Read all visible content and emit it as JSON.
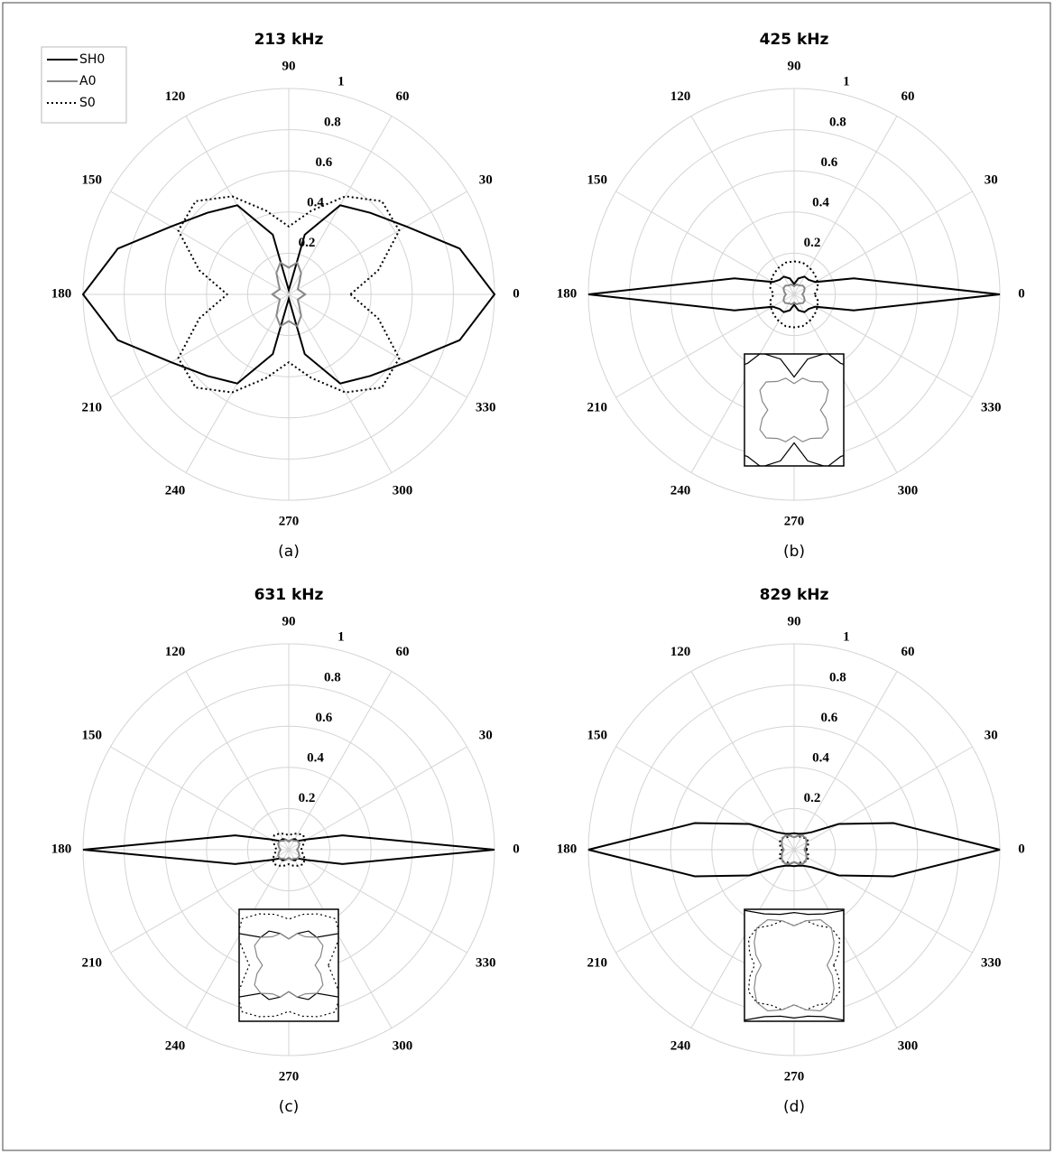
{
  "chart_data": [
    {
      "type": "polar",
      "title": "213 kHz",
      "caption": "(a)",
      "rlim": [
        0,
        1
      ],
      "rticks": [
        0.2,
        0.4,
        0.6,
        0.8,
        1
      ],
      "thetaticks": [
        0,
        30,
        60,
        90,
        120,
        150,
        180,
        210,
        240,
        270,
        300,
        330
      ],
      "grid": true,
      "legend": "upper left",
      "inset": false,
      "theta": [
        0,
        15,
        30,
        45,
        60,
        75,
        90,
        105,
        120,
        135,
        150,
        165,
        180,
        195,
        210,
        225,
        240,
        255,
        270,
        285,
        300,
        315,
        330,
        345
      ],
      "series": [
        {
          "name": "SH0",
          "color": "#000000",
          "dash": "solid",
          "values": [
            1.0,
            0.86,
            0.66,
            0.56,
            0.5,
            0.3,
            0.02,
            0.3,
            0.5,
            0.56,
            0.66,
            0.86,
            1.0,
            0.86,
            0.66,
            0.56,
            0.5,
            0.3,
            0.02,
            0.3,
            0.5,
            0.56,
            0.66,
            0.86
          ]
        },
        {
          "name": "A0",
          "color": "#888888",
          "dash": "solid",
          "values": [
            0.08,
            0.06,
            0.05,
            0.07,
            0.12,
            0.16,
            0.13,
            0.16,
            0.12,
            0.07,
            0.05,
            0.06,
            0.08,
            0.06,
            0.05,
            0.07,
            0.12,
            0.16,
            0.13,
            0.16,
            0.12,
            0.07,
            0.05,
            0.06
          ]
        },
        {
          "name": "S0",
          "color": "#000000",
          "dash": "dotted",
          "values": [
            0.3,
            0.45,
            0.62,
            0.64,
            0.55,
            0.42,
            0.33,
            0.42,
            0.55,
            0.64,
            0.62,
            0.45,
            0.3,
            0.45,
            0.62,
            0.64,
            0.55,
            0.42,
            0.33,
            0.42,
            0.55,
            0.64,
            0.62,
            0.45
          ]
        }
      ]
    },
    {
      "type": "polar",
      "title": "425 kHz",
      "caption": "(b)",
      "rlim": [
        0,
        1
      ],
      "rticks": [
        0.2,
        0.4,
        0.6,
        0.8,
        1
      ],
      "thetaticks": [
        0,
        30,
        60,
        90,
        120,
        150,
        180,
        210,
        240,
        270,
        300,
        330
      ],
      "grid": true,
      "inset": true,
      "theta": [
        0,
        15,
        30,
        45,
        60,
        75,
        90,
        105,
        120,
        135,
        150,
        165,
        180,
        195,
        210,
        225,
        240,
        255,
        270,
        285,
        300,
        315,
        330,
        345
      ],
      "series": [
        {
          "color": "#000000",
          "dash": "solid",
          "values": [
            1.0,
            0.3,
            0.12,
            0.1,
            0.1,
            0.08,
            0.05,
            0.08,
            0.1,
            0.1,
            0.12,
            0.3,
            1.0,
            0.3,
            0.12,
            0.1,
            0.1,
            0.08,
            0.05,
            0.08,
            0.1,
            0.1,
            0.12,
            0.3
          ]
        },
        {
          "color": "#888888",
          "dash": "solid",
          "values": [
            0.04,
            0.05,
            0.06,
            0.06,
            0.05,
            0.05,
            0.04,
            0.05,
            0.05,
            0.06,
            0.06,
            0.05,
            0.04,
            0.05,
            0.06,
            0.06,
            0.05,
            0.05,
            0.04,
            0.05,
            0.05,
            0.06,
            0.06,
            0.05
          ]
        },
        {
          "color": "#000000",
          "dash": "dotted",
          "values": [
            0.1,
            0.12,
            0.13,
            0.14,
            0.15,
            0.16,
            0.16,
            0.16,
            0.15,
            0.14,
            0.13,
            0.12,
            0.1,
            0.12,
            0.13,
            0.14,
            0.15,
            0.16,
            0.16,
            0.16,
            0.15,
            0.14,
            0.13,
            0.12
          ]
        }
      ]
    },
    {
      "type": "polar",
      "title": "631 kHz",
      "caption": "(c)",
      "rlim": [
        0,
        1
      ],
      "rticks": [
        0.2,
        0.4,
        0.6,
        0.8,
        1
      ],
      "thetaticks": [
        0,
        30,
        60,
        90,
        120,
        150,
        180,
        210,
        240,
        270,
        300,
        330
      ],
      "grid": true,
      "inset": true,
      "theta": [
        0,
        15,
        30,
        45,
        60,
        75,
        90,
        105,
        120,
        135,
        150,
        165,
        180,
        195,
        210,
        225,
        240,
        255,
        270,
        285,
        300,
        315,
        330,
        345
      ],
      "series": [
        {
          "color": "#000000",
          "dash": "solid",
          "values": [
            1.0,
            0.27,
            0.1,
            0.06,
            0.06,
            0.05,
            0.04,
            0.05,
            0.06,
            0.06,
            0.1,
            0.27,
            1.0,
            0.27,
            0.1,
            0.06,
            0.06,
            0.05,
            0.04,
            0.05,
            0.06,
            0.06,
            0.1,
            0.27
          ]
        },
        {
          "color": "#888888",
          "dash": "solid",
          "values": [
            0.04,
            0.05,
            0.06,
            0.06,
            0.05,
            0.05,
            0.04,
            0.05,
            0.05,
            0.06,
            0.06,
            0.05,
            0.04,
            0.05,
            0.06,
            0.06,
            0.05,
            0.05,
            0.04,
            0.05,
            0.05,
            0.06,
            0.06,
            0.05
          ]
        },
        {
          "color": "#000000",
          "dash": "dotted",
          "values": [
            0.06,
            0.07,
            0.09,
            0.1,
            0.09,
            0.08,
            0.07,
            0.08,
            0.09,
            0.1,
            0.09,
            0.07,
            0.06,
            0.07,
            0.09,
            0.1,
            0.09,
            0.08,
            0.07,
            0.08,
            0.09,
            0.1,
            0.09,
            0.07
          ]
        }
      ]
    },
    {
      "type": "polar",
      "title": "829 kHz",
      "caption": "(d)",
      "rlim": [
        0,
        1
      ],
      "rticks": [
        0.2,
        0.4,
        0.6,
        0.8,
        1
      ],
      "thetaticks": [
        0,
        30,
        60,
        90,
        120,
        150,
        180,
        210,
        240,
        270,
        300,
        330
      ],
      "grid": true,
      "inset": true,
      "theta": [
        0,
        15,
        30,
        45,
        60,
        75,
        90,
        105,
        120,
        135,
        150,
        165,
        180,
        195,
        210,
        225,
        240,
        255,
        270,
        285,
        300,
        315,
        330,
        345
      ],
      "series": [
        {
          "color": "#000000",
          "dash": "solid",
          "values": [
            1.0,
            0.5,
            0.25,
            0.12,
            0.09,
            0.08,
            0.08,
            0.08,
            0.09,
            0.12,
            0.25,
            0.5,
            1.0,
            0.5,
            0.25,
            0.12,
            0.09,
            0.08,
            0.08,
            0.08,
            0.09,
            0.12,
            0.25,
            0.5
          ]
        },
        {
          "color": "#888888",
          "dash": "solid",
          "values": [
            0.05,
            0.06,
            0.07,
            0.08,
            0.08,
            0.07,
            0.06,
            0.07,
            0.08,
            0.08,
            0.07,
            0.06,
            0.05,
            0.06,
            0.07,
            0.08,
            0.08,
            0.07,
            0.06,
            0.07,
            0.08,
            0.08,
            0.07,
            0.06
          ]
        },
        {
          "color": "#000000",
          "dash": "dotted",
          "values": [
            0.06,
            0.07,
            0.08,
            0.08,
            0.07,
            0.07,
            0.06,
            0.07,
            0.07,
            0.08,
            0.08,
            0.07,
            0.06,
            0.07,
            0.08,
            0.08,
            0.07,
            0.07,
            0.06,
            0.07,
            0.07,
            0.08,
            0.08,
            0.07
          ]
        }
      ]
    }
  ]
}
